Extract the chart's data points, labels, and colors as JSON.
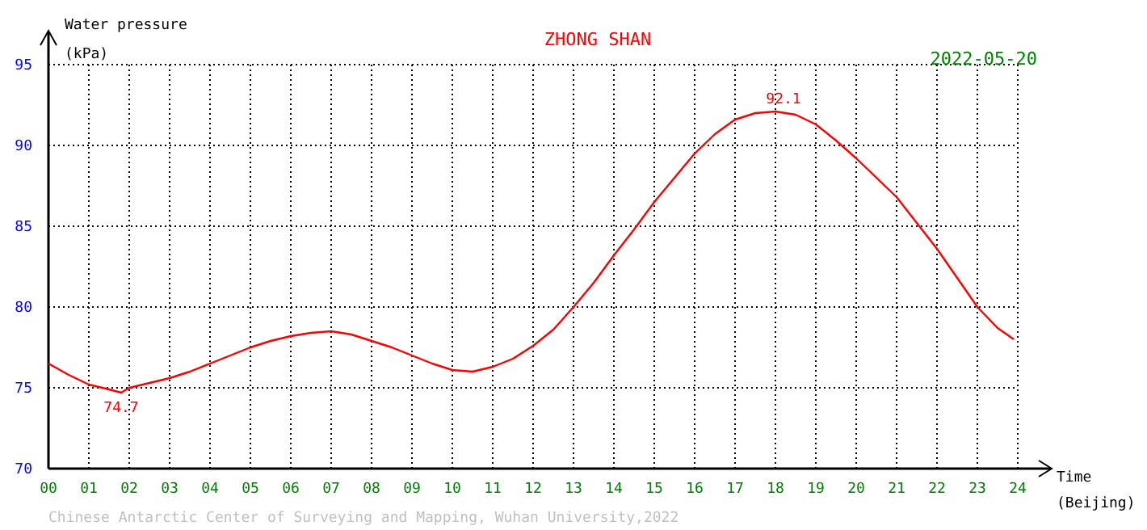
{
  "chart_data": {
    "type": "line",
    "title": "ZHONG SHAN",
    "subtitle": "2022-05-20",
    "xlabel": "Time (Beijing)",
    "ylabel": "Water pressure (kPa)",
    "xlim": [
      0,
      24
    ],
    "ylim": [
      70,
      95
    ],
    "xticks": [
      {
        "value": 0,
        "label": "00"
      },
      {
        "value": 1,
        "label": "01"
      },
      {
        "value": 2,
        "label": "02"
      },
      {
        "value": 3,
        "label": "03"
      },
      {
        "value": 4,
        "label": "04"
      },
      {
        "value": 5,
        "label": "05"
      },
      {
        "value": 6,
        "label": "06"
      },
      {
        "value": 7,
        "label": "07"
      },
      {
        "value": 8,
        "label": "08"
      },
      {
        "value": 9,
        "label": "09"
      },
      10,
      11,
      12,
      13,
      14,
      15,
      16,
      17,
      18,
      19,
      20,
      21,
      22,
      23,
      24
    ],
    "yticks": [
      70,
      75,
      80,
      85,
      90,
      95
    ],
    "grid": true,
    "marker": "none",
    "line_style": "solid",
    "x": [
      0,
      0.5,
      1,
      1.5,
      1.8,
      2,
      2.5,
      3,
      3.5,
      4,
      4.5,
      5,
      5.5,
      6,
      6.5,
      7,
      7.5,
      8,
      8.5,
      9,
      9.5,
      10,
      10.5,
      11,
      11.5,
      12,
      12.5,
      13,
      13.5,
      14,
      14.5,
      15,
      15.5,
      16,
      16.5,
      17,
      17.5,
      18,
      18.5,
      19,
      19.5,
      20,
      20.5,
      21,
      21.5,
      22,
      22.5,
      23,
      23.5,
      23.9
    ],
    "series": [
      {
        "color": "#ff0000",
        "values": [
          76.5,
          75.8,
          75.2,
          74.9,
          74.7,
          75.0,
          75.3,
          75.6,
          76.0,
          76.5,
          77.0,
          77.5,
          77.9,
          78.2,
          78.4,
          78.5,
          78.3,
          77.9,
          77.5,
          77.0,
          76.5,
          76.1,
          76.0,
          76.3,
          76.8,
          77.6,
          78.6,
          80.0,
          81.5,
          83.2,
          84.8,
          86.5,
          88.0,
          89.5,
          90.7,
          91.6,
          92.0,
          92.1,
          91.9,
          91.3,
          90.3,
          89.2,
          88.0,
          86.8,
          85.2,
          83.6,
          81.8,
          80.0,
          78.7,
          78.0
        ]
      }
    ],
    "annotations": [
      {
        "text": "74.7",
        "x": 1.8,
        "y": 74.7
      },
      {
        "text": "92.1",
        "x": 18.2,
        "y": 92.1
      },
      "Chinese Antarctic Center of Surveying and Mapping, Wuhan University,2022"
    ]
  }
}
